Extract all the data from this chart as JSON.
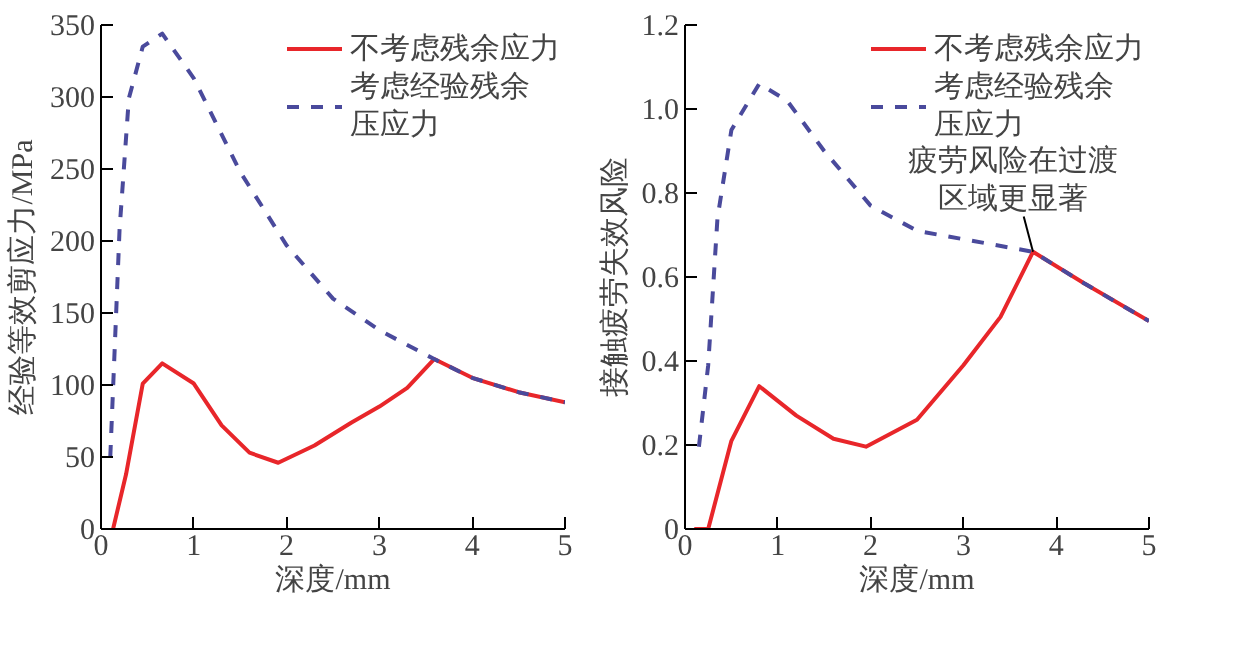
{
  "chart_data": [
    {
      "type": "line",
      "xlabel": "深度/mm",
      "ylabel": "经验等效剪应力/MPa",
      "xlim": [
        0,
        5
      ],
      "ylim": [
        0,
        350
      ],
      "xticks": [
        0,
        1,
        2,
        3,
        4,
        5
      ],
      "yticks": [
        0,
        50,
        100,
        150,
        200,
        250,
        300,
        350
      ],
      "legend": "top right",
      "grid": false,
      "series": [
        {
          "name": "不考虑残余应力",
          "color": "#e8262a",
          "line_style": "solid",
          "x": [
            0.13,
            0.27,
            0.45,
            0.66,
            1,
            1.3,
            1.6,
            1.91,
            2.3,
            2.7,
            3,
            3.3,
            3.59,
            4,
            4.5,
            5
          ],
          "values": [
            0,
            38,
            101,
            115,
            101,
            72,
            53,
            46,
            58,
            74,
            85,
            98,
            118,
            105,
            95,
            88
          ]
        },
        {
          "name": "考虑经验残余压应力",
          "color": "#4a4a9c",
          "line_style": "dashed",
          "x": [
            0.1,
            0.2,
            0.3,
            0.45,
            0.66,
            1,
            1.5,
            2,
            2.5,
            3,
            3.59,
            4,
            4.5,
            5
          ],
          "values": [
            50,
            208,
            299,
            335,
            344,
            313,
            248,
            197,
            160,
            138,
            118,
            105,
            95,
            88
          ]
        }
      ]
    },
    {
      "type": "line",
      "xlabel": "深度/mm",
      "ylabel": "接触疲劳失效风险",
      "xlim": [
        0,
        5
      ],
      "ylim": [
        0,
        1.2
      ],
      "xticks": [
        0,
        1,
        2,
        3,
        4,
        5
      ],
      "yticks": [
        {
          "value": 0,
          "label": "0"
        },
        0.2,
        0.4,
        0.6,
        0.8,
        {
          "value": 1,
          "label": "1.0"
        },
        1.2
      ],
      "legend": "top right",
      "grid": false,
      "annotations": [
        {
          "text": "疲劳风险在过渡区域更显著",
          "x": 3.75,
          "y": 0.66
        }
      ],
      "series": [
        {
          "name": "不考虑残余应力",
          "color": "#e8262a",
          "line_style": "solid",
          "x": [
            0.1,
            0.25,
            0.5,
            0.8,
            1.2,
            1.6,
            1.95,
            2.5,
            3,
            3.4,
            3.75,
            4.3,
            5
          ],
          "values": [
            0,
            0,
            0.21,
            0.34,
            0.27,
            0.215,
            0.196,
            0.26,
            0.39,
            0.505,
            0.66,
            0.585,
            0.495
          ]
        },
        {
          "name": "考虑经验残余压应力",
          "color": "#4a4a9c",
          "line_style": "dashed",
          "x": [
            0.15,
            0.25,
            0.35,
            0.5,
            0.8,
            1.1,
            1.5,
            2,
            2.5,
            3,
            3.75,
            4.3,
            5
          ],
          "values": [
            0.196,
            0.39,
            0.74,
            0.95,
            1.06,
            1.02,
            0.9,
            0.77,
            0.71,
            0.69,
            0.66,
            0.585,
            0.495
          ]
        }
      ]
    }
  ]
}
